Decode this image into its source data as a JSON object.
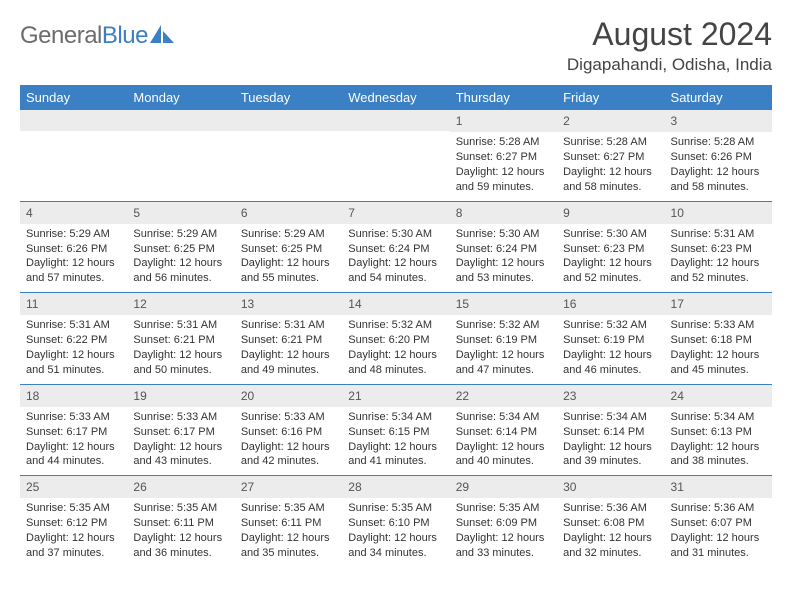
{
  "logo": {
    "part1": "General",
    "part2": "Blue"
  },
  "title": "August 2024",
  "subtitle": "Digapahandi, Odisha, India",
  "header_bg": "#3b7fc4",
  "header_text_color": "#ffffff",
  "row_divider_color": "#3b7fc4",
  "daynum_bg": "#ececec",
  "body_text_color": "#333333",
  "days": [
    "Sunday",
    "Monday",
    "Tuesday",
    "Wednesday",
    "Thursday",
    "Friday",
    "Saturday"
  ],
  "weeks": [
    [
      null,
      null,
      null,
      null,
      {
        "n": "1",
        "sr": "5:28 AM",
        "ss": "6:27 PM",
        "dl": "12 hours and 59 minutes."
      },
      {
        "n": "2",
        "sr": "5:28 AM",
        "ss": "6:27 PM",
        "dl": "12 hours and 58 minutes."
      },
      {
        "n": "3",
        "sr": "5:28 AM",
        "ss": "6:26 PM",
        "dl": "12 hours and 58 minutes."
      }
    ],
    [
      {
        "n": "4",
        "sr": "5:29 AM",
        "ss": "6:26 PM",
        "dl": "12 hours and 57 minutes."
      },
      {
        "n": "5",
        "sr": "5:29 AM",
        "ss": "6:25 PM",
        "dl": "12 hours and 56 minutes."
      },
      {
        "n": "6",
        "sr": "5:29 AM",
        "ss": "6:25 PM",
        "dl": "12 hours and 55 minutes."
      },
      {
        "n": "7",
        "sr": "5:30 AM",
        "ss": "6:24 PM",
        "dl": "12 hours and 54 minutes."
      },
      {
        "n": "8",
        "sr": "5:30 AM",
        "ss": "6:24 PM",
        "dl": "12 hours and 53 minutes."
      },
      {
        "n": "9",
        "sr": "5:30 AM",
        "ss": "6:23 PM",
        "dl": "12 hours and 52 minutes."
      },
      {
        "n": "10",
        "sr": "5:31 AM",
        "ss": "6:23 PM",
        "dl": "12 hours and 52 minutes."
      }
    ],
    [
      {
        "n": "11",
        "sr": "5:31 AM",
        "ss": "6:22 PM",
        "dl": "12 hours and 51 minutes."
      },
      {
        "n": "12",
        "sr": "5:31 AM",
        "ss": "6:21 PM",
        "dl": "12 hours and 50 minutes."
      },
      {
        "n": "13",
        "sr": "5:31 AM",
        "ss": "6:21 PM",
        "dl": "12 hours and 49 minutes."
      },
      {
        "n": "14",
        "sr": "5:32 AM",
        "ss": "6:20 PM",
        "dl": "12 hours and 48 minutes."
      },
      {
        "n": "15",
        "sr": "5:32 AM",
        "ss": "6:19 PM",
        "dl": "12 hours and 47 minutes."
      },
      {
        "n": "16",
        "sr": "5:32 AM",
        "ss": "6:19 PM",
        "dl": "12 hours and 46 minutes."
      },
      {
        "n": "17",
        "sr": "5:33 AM",
        "ss": "6:18 PM",
        "dl": "12 hours and 45 minutes."
      }
    ],
    [
      {
        "n": "18",
        "sr": "5:33 AM",
        "ss": "6:17 PM",
        "dl": "12 hours and 44 minutes."
      },
      {
        "n": "19",
        "sr": "5:33 AM",
        "ss": "6:17 PM",
        "dl": "12 hours and 43 minutes."
      },
      {
        "n": "20",
        "sr": "5:33 AM",
        "ss": "6:16 PM",
        "dl": "12 hours and 42 minutes."
      },
      {
        "n": "21",
        "sr": "5:34 AM",
        "ss": "6:15 PM",
        "dl": "12 hours and 41 minutes."
      },
      {
        "n": "22",
        "sr": "5:34 AM",
        "ss": "6:14 PM",
        "dl": "12 hours and 40 minutes."
      },
      {
        "n": "23",
        "sr": "5:34 AM",
        "ss": "6:14 PM",
        "dl": "12 hours and 39 minutes."
      },
      {
        "n": "24",
        "sr": "5:34 AM",
        "ss": "6:13 PM",
        "dl": "12 hours and 38 minutes."
      }
    ],
    [
      {
        "n": "25",
        "sr": "5:35 AM",
        "ss": "6:12 PM",
        "dl": "12 hours and 37 minutes."
      },
      {
        "n": "26",
        "sr": "5:35 AM",
        "ss": "6:11 PM",
        "dl": "12 hours and 36 minutes."
      },
      {
        "n": "27",
        "sr": "5:35 AM",
        "ss": "6:11 PM",
        "dl": "12 hours and 35 minutes."
      },
      {
        "n": "28",
        "sr": "5:35 AM",
        "ss": "6:10 PM",
        "dl": "12 hours and 34 minutes."
      },
      {
        "n": "29",
        "sr": "5:35 AM",
        "ss": "6:09 PM",
        "dl": "12 hours and 33 minutes."
      },
      {
        "n": "30",
        "sr": "5:36 AM",
        "ss": "6:08 PM",
        "dl": "12 hours and 32 minutes."
      },
      {
        "n": "31",
        "sr": "5:36 AM",
        "ss": "6:07 PM",
        "dl": "12 hours and 31 minutes."
      }
    ]
  ],
  "labels": {
    "sunrise": "Sunrise: ",
    "sunset": "Sunset: ",
    "daylight": "Daylight: "
  }
}
